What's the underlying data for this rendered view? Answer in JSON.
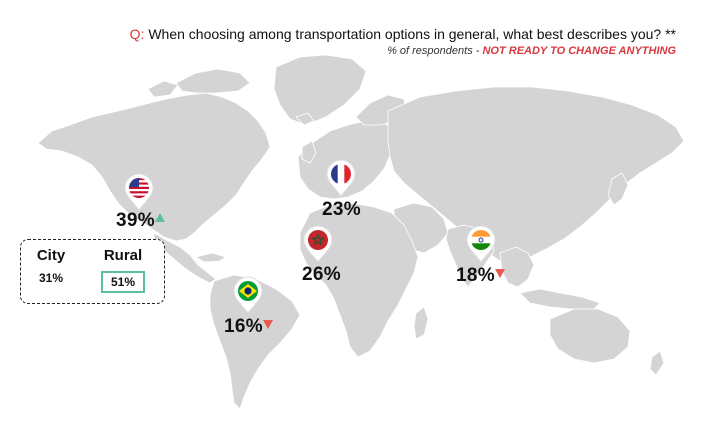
{
  "header": {
    "question_prefix": "Q:",
    "question_text": " When choosing among transportation options in general, what best describes you? **",
    "subtitle_prefix": "% of respondents - ",
    "subtitle_highlight": "NOT READY TO CHANGE ANYTHING"
  },
  "colors": {
    "land": "#d4d4d4",
    "accent_red": "#d8383e",
    "trend_down": "#e85a50",
    "trend_up": "#5fbf9a"
  },
  "markers": [
    {
      "country": "United States",
      "flag": "usa-flag-icon",
      "value": "39%",
      "trend": "up"
    },
    {
      "country": "France",
      "flag": "france-flag-icon",
      "value": "23%",
      "trend": "none"
    },
    {
      "country": "Morocco",
      "flag": "morocco-flag-icon",
      "value": "26%",
      "trend": "none"
    },
    {
      "country": "India",
      "flag": "india-flag-icon",
      "value": "18%",
      "trend": "down"
    },
    {
      "country": "Brazil",
      "flag": "brazil-flag-icon",
      "value": "16%",
      "trend": "down"
    }
  ],
  "legend": {
    "city_label": "City",
    "city_value": "31%",
    "rural_label": "Rural",
    "rural_value": "51%"
  }
}
